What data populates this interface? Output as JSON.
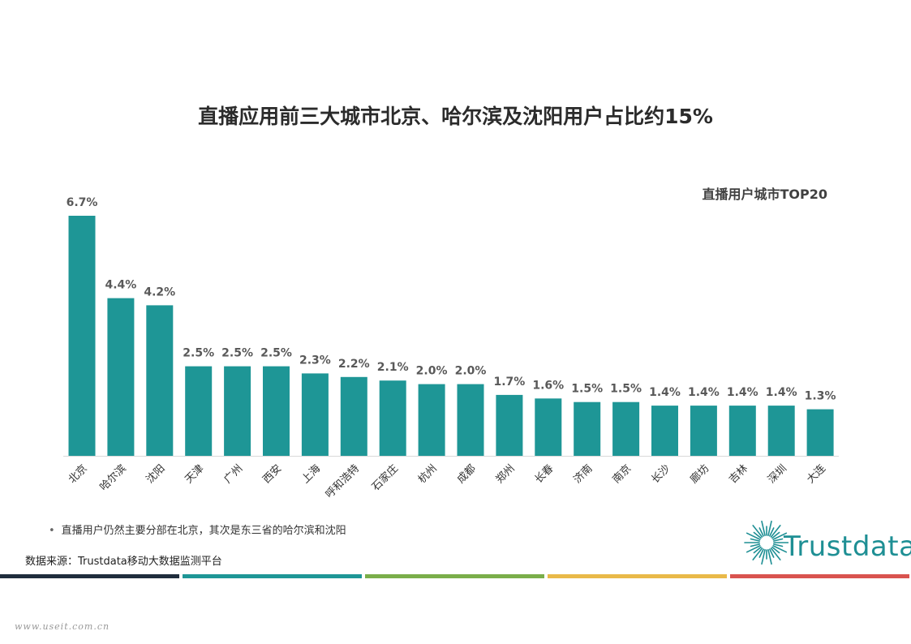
{
  "title": "直播应用前三大城市北京、哈尔滨及沈阳用户占比约15%",
  "chart_data": {
    "type": "bar",
    "title": "直播应用前三大城市北京、哈尔滨及沈阳用户占比约15%",
    "subtitle": "直播用户城市TOP20",
    "categories": [
      "北京",
      "哈尔滨",
      "沈阳",
      "天津",
      "广州",
      "西安",
      "上海",
      "呼和浩特",
      "石家庄",
      "杭州",
      "成都",
      "郑州",
      "长春",
      "济南",
      "南京",
      "长沙",
      "廊坊",
      "吉林",
      "深圳",
      "大连"
    ],
    "values": [
      6.7,
      4.4,
      4.2,
      2.5,
      2.5,
      2.5,
      2.3,
      2.2,
      2.1,
      2.0,
      2.0,
      1.7,
      1.6,
      1.5,
      1.5,
      1.4,
      1.4,
      1.4,
      1.4,
      1.3
    ],
    "labels": [
      "6.7%",
      "4.4%",
      "4.2%",
      "2.5%",
      "2.5%",
      "2.5%",
      "2.3%",
      "2.2%",
      "2.1%",
      "2.0%",
      "2.0%",
      "1.7%",
      "1.6%",
      "1.5%",
      "1.5%",
      "1.4%",
      "1.4%",
      "1.4%",
      "1.4%",
      "1.3%"
    ],
    "value_unit": "%",
    "xlabel": "",
    "ylabel": "",
    "ylim": [
      0,
      6.7
    ],
    "grid": false,
    "bar_color": "#1e9696"
  },
  "note": "直播用户仍然主要分部在北京，其次是东三省的哈尔滨和沈阳",
  "source": "数据来源：Trustdata移动大数据监测平台",
  "logo_text": "Trustdata",
  "watermark": "www.useit.com.cn",
  "strip_colors": [
    "#1f2d3d",
    "#1e9696",
    "#7aae4a",
    "#e9b949",
    "#d9534f"
  ]
}
